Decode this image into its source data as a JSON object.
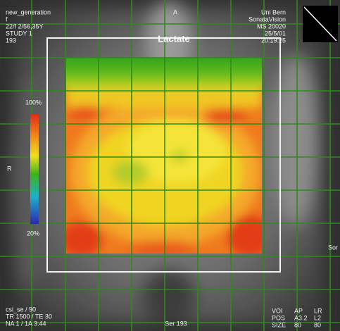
{
  "header": {
    "left": [
      "new_generation",
      "f",
      "22/f 2/56,35Y",
      "STUDY 1",
      "193"
    ],
    "center": "A",
    "right": [
      "Uni Bern",
      "SonataVision",
      "MS 20020",
      "25/5/01",
      "20:19:25"
    ]
  },
  "map": {
    "title": "Lactate",
    "scale_max": "100%",
    "scale_min": "20%",
    "side": "R",
    "right_edge": "Sor"
  },
  "footer": {
    "left": [
      "csi_se / 90",
      "TR 1500 / TE 30",
      "NA 1 / 1A 3:44"
    ],
    "center": "Ser 193",
    "right": [
      [
        "VOI",
        "AP",
        "LR"
      ],
      [
        "POS",
        "A3.2",
        "L2"
      ],
      [
        "SIZE",
        "80",
        "80"
      ]
    ]
  }
}
